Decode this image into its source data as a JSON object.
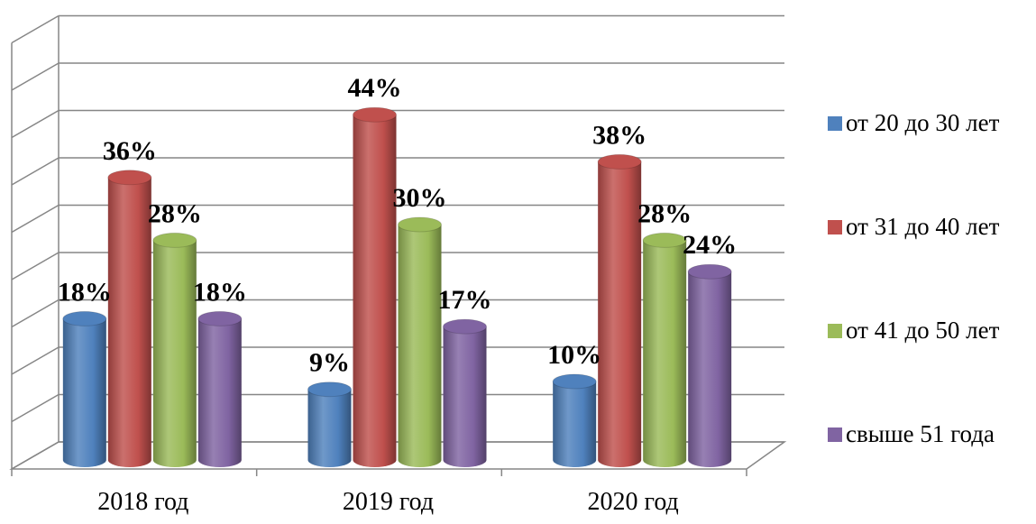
{
  "chart_data": {
    "type": "bar",
    "categories": [
      "2018 год",
      "2019 год",
      "2020 год"
    ],
    "series": [
      {
        "name": "от 20 до 30 лет",
        "values": [
          18,
          9,
          10
        ],
        "labels": [
          "18%",
          "9%",
          "10%"
        ],
        "color": "#4f81bd"
      },
      {
        "name": "от 31 до 40 лет",
        "values": [
          36,
          44,
          38
        ],
        "labels": [
          "36%",
          "44%",
          "38%"
        ],
        "color": "#c0504d"
      },
      {
        "name": "от 41 до 50 лет",
        "values": [
          28,
          30,
          28
        ],
        "labels": [
          "28%",
          "30%",
          "28%"
        ],
        "color": "#9bbb59"
      },
      {
        "name": "свыше 51 года",
        "values": [
          18,
          17,
          24
        ],
        "labels": [
          "18%",
          "17%",
          "24%"
        ],
        "color": "#8064a2"
      }
    ],
    "ylim": [
      0,
      45
    ],
    "grid": true,
    "legend": "right",
    "style": "3d-cylinder"
  }
}
